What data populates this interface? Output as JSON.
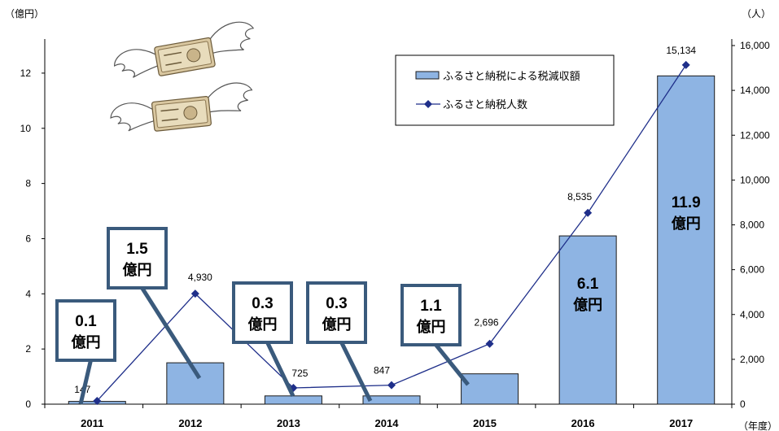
{
  "chart_data": {
    "type": "bar+line",
    "left_axis": {
      "unit_label": "（億円）",
      "ylim": [
        0,
        13
      ],
      "ticks": [
        0,
        2,
        4,
        6,
        8,
        10,
        12
      ]
    },
    "right_axis": {
      "unit_label": "（人）",
      "ylim": [
        0,
        16000
      ],
      "ticks": [
        0,
        2000,
        4000,
        6000,
        8000,
        10000,
        12000,
        14000,
        16000
      ],
      "tick_labels": [
        "0",
        "2,000",
        "4,000",
        "6,000",
        "8,000",
        "10,000",
        "12,000",
        "14,000",
        "16,000"
      ]
    },
    "x_axis": {
      "categories": [
        "2011",
        "2012",
        "2013",
        "2014",
        "2015",
        "2016",
        "2017"
      ],
      "unit_label": "（年度）"
    },
    "bars": {
      "name": "ふるさと納税による税減収額",
      "color": "#8eb4e3",
      "values": [
        0.1,
        1.5,
        0.3,
        0.3,
        1.1,
        6.1,
        11.9
      ]
    },
    "line": {
      "name": "ふるさと納税人数",
      "color": "#1f2f8a",
      "values": [
        147,
        4930,
        725,
        847,
        2696,
        8535,
        15134
      ],
      "labels": [
        "147",
        "4,930",
        "725",
        "847",
        "2,696",
        "8,535",
        "15,134"
      ]
    },
    "callouts": [
      {
        "value": "0.1",
        "unit": "億円"
      },
      {
        "value": "1.5",
        "unit": "億円"
      },
      {
        "value": "0.3",
        "unit": "億円"
      },
      {
        "value": "0.3",
        "unit": "億円"
      },
      {
        "value": "1.1",
        "unit": "億円"
      },
      {
        "value": "6.1",
        "unit": "億円"
      },
      {
        "value": "11.9",
        "unit": "億円"
      }
    ],
    "legend": {
      "placement": "top-right",
      "bar_label": "ふるさと納税による税減収額",
      "line_label": "ふるさと納税人数"
    },
    "decoration_icons": [
      "flying-money-icon",
      "flying-money-icon"
    ],
    "colors": {
      "callout_border": "#3a5a7c",
      "callout_text": "#000000"
    }
  }
}
